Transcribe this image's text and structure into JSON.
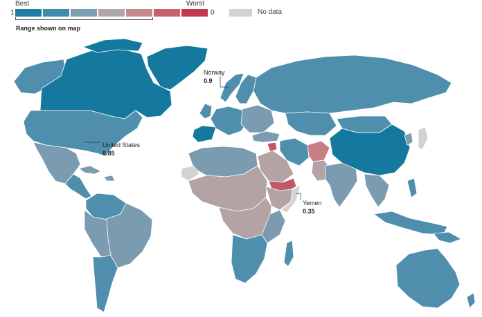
{
  "legend": {
    "best_label": "Best",
    "worst_label": "Worst",
    "min_value": "1",
    "max_value": "0",
    "colors": [
      "#1f7ea3",
      "#3f8aad",
      "#7a9fb5",
      "#b0a6a6",
      "#c88a8c",
      "#c9606d",
      "#c4364d"
    ],
    "no_data_label": "No data",
    "no_data_color": "#d2d2d2",
    "range_label": "Range shown on map"
  },
  "map_colors": {
    "ocean": "#ffffff",
    "best": "#15789e",
    "good": "#4f8fad",
    "mid": "#7a9bb0",
    "low": "#b3a3a4",
    "poor": "#c77f86",
    "worst": "#c25766",
    "nodata": "#d2d2d2",
    "border": "#ffffff"
  },
  "callouts": [
    {
      "country": "Norway",
      "value": "0.9"
    },
    {
      "country": "United States",
      "value": "0.85"
    },
    {
      "country": "Yemen",
      "value": "0.35"
    }
  ]
}
